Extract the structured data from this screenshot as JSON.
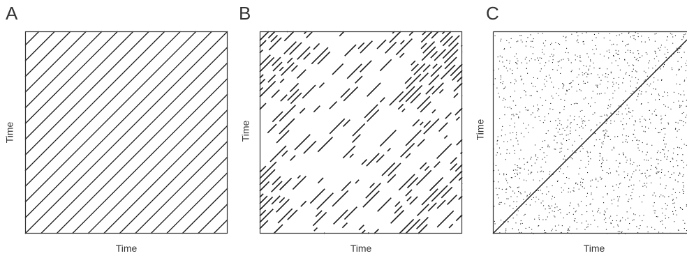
{
  "panels": [
    {
      "letter": "A",
      "xlabel": "Time",
      "ylabel": "Time",
      "pattern": "periodic diagonal lines"
    },
    {
      "letter": "B",
      "xlabel": "Time",
      "ylabel": "Time",
      "pattern": "broken diagonal segments with blocks"
    },
    {
      "letter": "C",
      "xlabel": "Time",
      "ylabel": "Time",
      "pattern": "random points with main diagonal"
    }
  ],
  "colors": {
    "line": "#1a1a1a",
    "frame": "#333333",
    "background": "#ffffff"
  }
}
